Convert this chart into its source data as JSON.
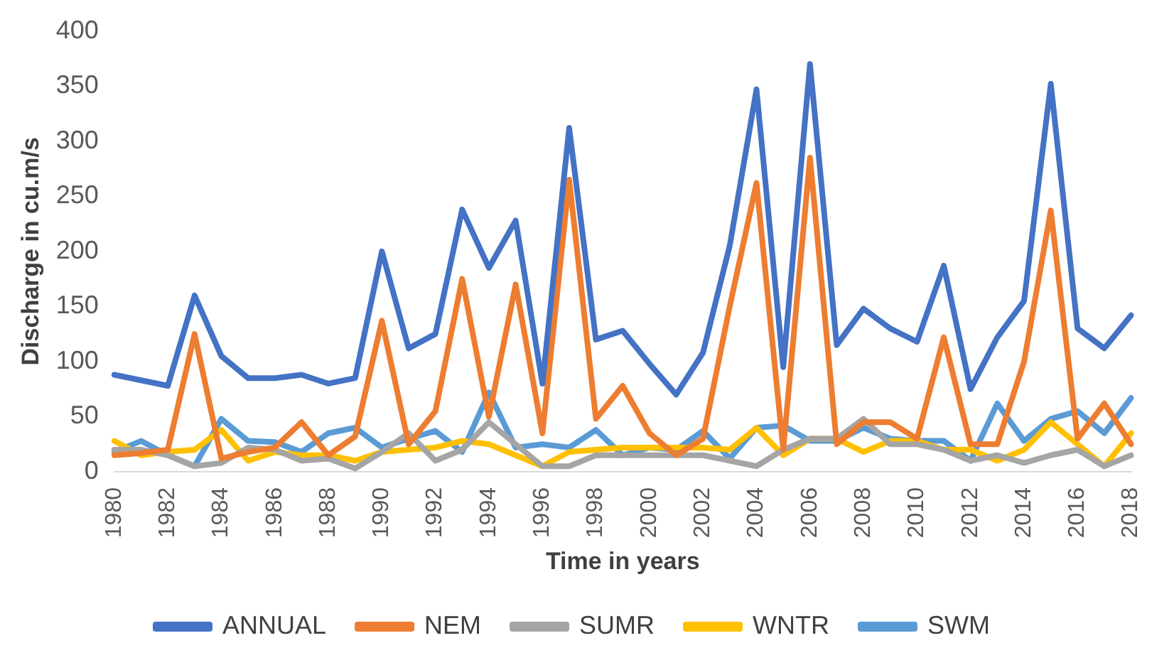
{
  "chart_data": {
    "type": "line",
    "xlabel": "Time in years",
    "ylabel": "Discharge in cu.m/s",
    "categories": [
      "1980",
      null,
      "1982",
      null,
      "1984",
      null,
      "1986",
      null,
      "1988",
      null,
      "1990",
      null,
      "1992",
      null,
      "1994",
      null,
      "1996",
      null,
      "1998",
      null,
      "2000",
      null,
      "2002",
      null,
      "2004",
      null,
      "2006",
      null,
      "2008",
      null,
      "2010",
      null,
      "2012",
      null,
      "2014",
      null,
      "2016",
      null,
      "2018"
    ],
    "ylim": [
      0,
      400
    ],
    "yticks": [
      0,
      50,
      100,
      150,
      200,
      250,
      300,
      350,
      400
    ],
    "grid": false,
    "legend": "bottom",
    "marker": "none",
    "line_style": "solid",
    "series": [
      {
        "name": "ANNUAL",
        "color": "#4472c4",
        "values": [
          88,
          83,
          78,
          160,
          105,
          85,
          85,
          88,
          80,
          85,
          200,
          112,
          125,
          238,
          185,
          228,
          80,
          312,
          120,
          128,
          98,
          70,
          108,
          205,
          347,
          95,
          370,
          115,
          148,
          130,
          118,
          187,
          75,
          122,
          155,
          352,
          130,
          112,
          142
        ]
      },
      {
        "name": "NEM",
        "color": "#ed7d31",
        "values": [
          15,
          17,
          20,
          125,
          12,
          18,
          22,
          45,
          15,
          32,
          137,
          25,
          55,
          175,
          50,
          170,
          35,
          265,
          48,
          78,
          35,
          15,
          30,
          150,
          262,
          20,
          285,
          25,
          45,
          45,
          30,
          122,
          25,
          25,
          100,
          237,
          30,
          62,
          25
        ]
      },
      {
        "name": "SUMR",
        "color": "#a5a5a5",
        "values": [
          20,
          20,
          15,
          5,
          8,
          22,
          20,
          10,
          12,
          3,
          18,
          35,
          10,
          20,
          45,
          25,
          5,
          5,
          15,
          15,
          15,
          15,
          15,
          10,
          5,
          20,
          30,
          30,
          48,
          25,
          25,
          20,
          10,
          15,
          8,
          15,
          20,
          5,
          15
        ]
      },
      {
        "name": "WNTR",
        "color": "#ffc000",
        "values": [
          28,
          15,
          18,
          20,
          38,
          10,
          18,
          15,
          15,
          10,
          18,
          20,
          22,
          28,
          25,
          15,
          5,
          18,
          20,
          22,
          22,
          22,
          22,
          20,
          40,
          15,
          30,
          30,
          18,
          28,
          28,
          20,
          20,
          10,
          20,
          45,
          25,
          5,
          35
        ]
      },
      {
        "name": "SWM",
        "color": "#5b9bd5",
        "values": [
          18,
          28,
          15,
          5,
          48,
          28,
          27,
          18,
          35,
          40,
          22,
          30,
          37,
          18,
          72,
          22,
          25,
          22,
          38,
          15,
          22,
          20,
          37,
          12,
          40,
          42,
          28,
          28,
          40,
          30,
          28,
          28,
          10,
          62,
          28,
          48,
          55,
          35,
          67
        ]
      }
    ]
  }
}
